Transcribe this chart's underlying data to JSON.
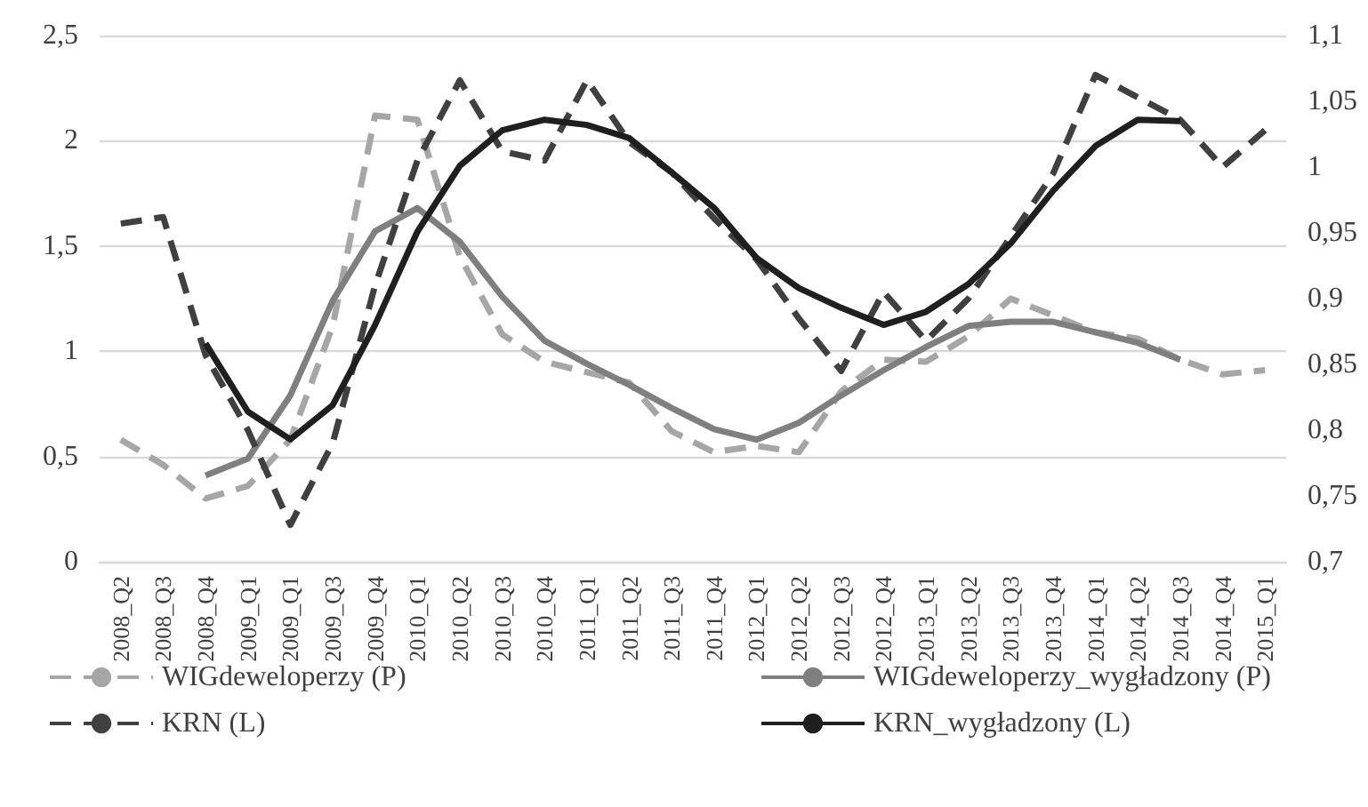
{
  "chart_data": {
    "type": "line",
    "categories": [
      "2008_Q2",
      "2008_Q3",
      "2008_Q4",
      "2009_Q1",
      "2009_Q1",
      "2009_Q3",
      "2009_Q4",
      "2010_Q1",
      "2010_Q2",
      "2010_Q3",
      "2010_Q4",
      "2011_Q1",
      "2011_Q2",
      "2011_Q3",
      "2011_Q4",
      "2012_Q1",
      "2012_Q2",
      "2012_Q3",
      "2012_Q4",
      "2013_Q1",
      "2013_Q2",
      "2013_Q3",
      "2013_Q4",
      "2014_Q1",
      "2014_Q2",
      "2014_Q3",
      "2014_Q4",
      "2015_Q1"
    ],
    "series": [
      {
        "name": "WIGdeweloperzy (P)",
        "color": "#a6a6a6",
        "line_style": "dashed",
        "values": [
          0.58,
          0.46,
          0.3,
          0.36,
          0.58,
          1.12,
          2.12,
          2.1,
          1.45,
          1.08,
          0.95,
          0.9,
          0.85,
          0.62,
          0.52,
          0.55,
          0.52,
          0.81,
          0.96,
          0.95,
          1.07,
          1.25,
          1.17,
          1.09,
          1.06,
          0.96,
          0.89,
          0.91
        ]
      },
      {
        "name": "WIGdeweloperzy_wygładzony (P)",
        "color": "#7f7f7f",
        "line_style": "solid",
        "values": [
          null,
          null,
          0.41,
          0.49,
          0.79,
          1.24,
          1.57,
          1.68,
          1.52,
          1.26,
          1.05,
          0.94,
          0.84,
          0.73,
          0.63,
          0.58,
          0.66,
          0.79,
          0.91,
          1.02,
          1.12,
          1.14,
          1.14,
          1.09,
          1.04,
          0.96,
          null,
          null
        ]
      },
      {
        "name": "KRN (L)",
        "color": "#404040",
        "line_style": "dashed",
        "axis": "y2",
        "values": [
          0.957,
          0.962,
          0.857,
          0.8,
          0.728,
          0.79,
          0.91,
          1.005,
          1.066,
          1.012,
          1.005,
          1.066,
          1.019,
          0.996,
          0.961,
          0.93,
          0.885,
          0.845,
          0.905,
          0.868,
          0.9,
          0.947,
          0.995,
          1.07,
          1.053,
          1.036,
          1.0,
          1.028
        ]
      },
      {
        "name": "KRN_wygładzony (L)",
        "color": "#1f1f1f",
        "line_style": "solid",
        "axis": "y2",
        "values": [
          null,
          null,
          0.866,
          0.814,
          0.793,
          0.819,
          0.88,
          0.951,
          1.001,
          1.028,
          1.036,
          1.032,
          1.022,
          0.996,
          0.969,
          0.931,
          0.908,
          0.893,
          0.88,
          0.89,
          0.911,
          0.942,
          0.982,
          1.016,
          1.036,
          1.035,
          null,
          null
        ]
      }
    ],
    "ylim": [
      0,
      2.5
    ],
    "yticks": [
      0,
      {
        "value": 0.5,
        "label": "0,5"
      },
      1,
      {
        "value": 1.5,
        "label": "1,5"
      },
      2,
      {
        "value": 2.5,
        "label": "2,5"
      }
    ],
    "y2lim": [
      0.7,
      1.1
    ],
    "y2ticks": [
      {
        "value": 0.7,
        "label": "0,7"
      },
      {
        "value": 0.75,
        "label": "0,75"
      },
      {
        "value": 0.8,
        "label": "0,8"
      },
      {
        "value": 0.85,
        "label": "0,85"
      },
      {
        "value": 0.9,
        "label": "0,9"
      },
      {
        "value": 0.95,
        "label": "0,95"
      },
      1,
      {
        "value": 1.05,
        "label": "1,05"
      },
      {
        "value": 1.1,
        "label": "1,1"
      }
    ],
    "grid": "y",
    "legend": "bottom",
    "marker": "none"
  }
}
